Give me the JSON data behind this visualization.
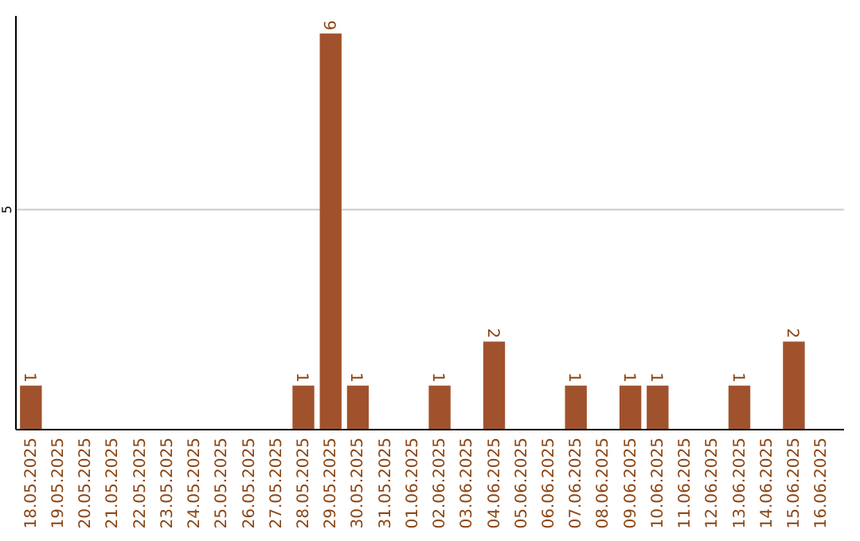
{
  "chart_data": {
    "type": "bar",
    "categories": [
      "18.05.2025",
      "19.05.2025",
      "20.05.2025",
      "21.05.2025",
      "22.05.2025",
      "23.05.2025",
      "24.05.2025",
      "25.05.2025",
      "26.05.2025",
      "27.05.2025",
      "28.05.2025",
      "29.05.2025",
      "30.05.2025",
      "31.05.2025",
      "01.06.2025",
      "02.06.2025",
      "03.06.2025",
      "04.06.2025",
      "05.06.2025",
      "06.06.2025",
      "07.06.2025",
      "08.06.2025",
      "09.06.2025",
      "10.06.2025",
      "11.06.2025",
      "12.06.2025",
      "13.06.2025",
      "14.06.2025",
      "15.06.2025",
      "16.06.2025"
    ],
    "values": [
      1,
      0,
      0,
      0,
      0,
      0,
      0,
      0,
      0,
      0,
      1,
      9,
      1,
      0,
      0,
      1,
      0,
      2,
      0,
      0,
      1,
      0,
      1,
      1,
      0,
      0,
      1,
      0,
      2,
      0
    ],
    "value_labels": [
      "1",
      null,
      null,
      null,
      null,
      null,
      null,
      null,
      null,
      null,
      "1",
      "9",
      "1",
      null,
      null,
      "1",
      null,
      "2",
      null,
      null,
      "1",
      null,
      "1",
      "1",
      null,
      null,
      "1",
      null,
      "2",
      null
    ],
    "color": "#a0522d",
    "ylim": [
      0,
      9.4
    ],
    "yticks": [
      5
    ],
    "grid": "y"
  }
}
